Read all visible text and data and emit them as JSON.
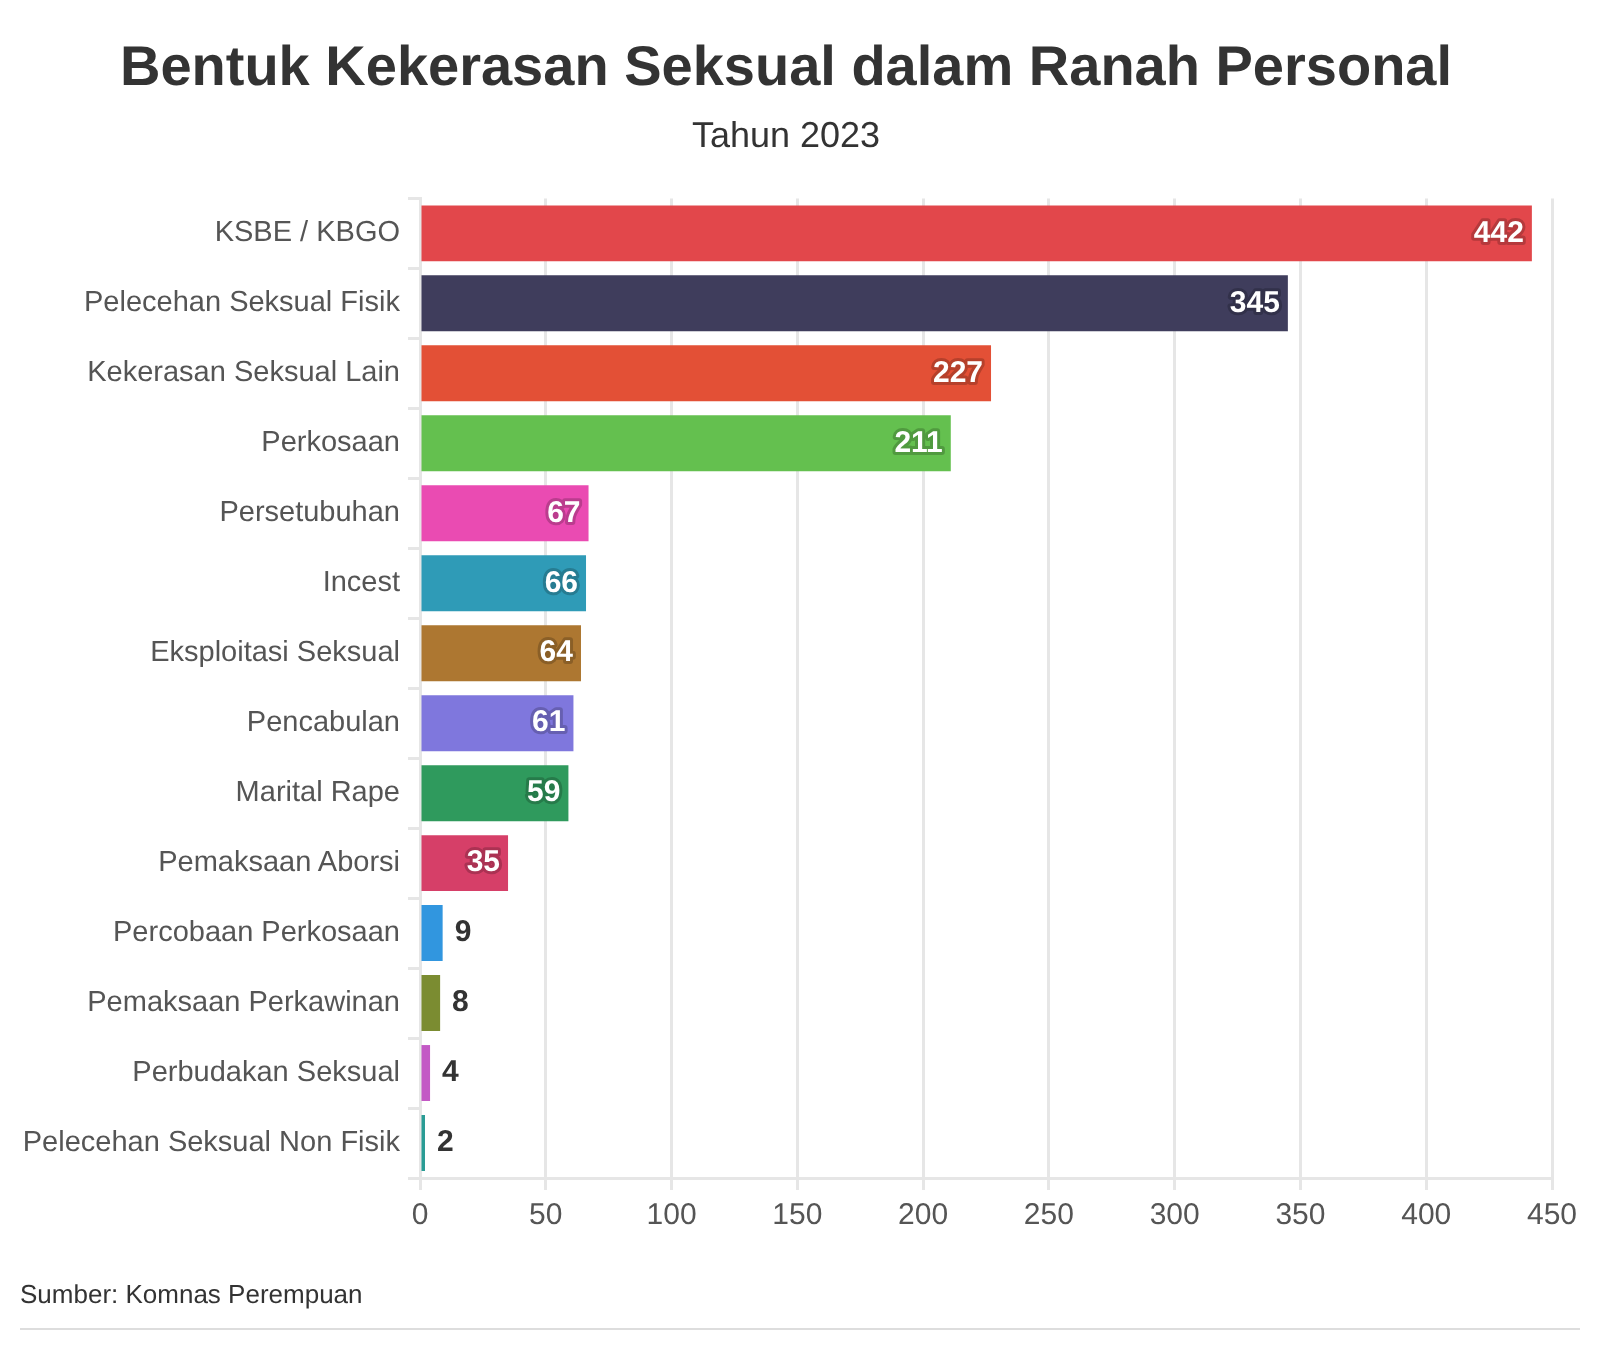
{
  "chart_data": {
    "type": "bar",
    "orientation": "horizontal",
    "title": "Bentuk Kekerasan Seksual dalam Ranah Personal",
    "subtitle": "Tahun 2023",
    "categories": [
      "KSBE / KBGO",
      "Pelecehan Seksual Fisik",
      "Kekerasan Seksual Lain",
      "Perkosaan",
      "Persetubuhan",
      "Incest",
      "Eksploitasi Seksual",
      "Pencabulan",
      "Marital Rape",
      "Pemaksaan Aborsi",
      "Percobaan Perkosaan",
      "Pemaksaan Perkawinan",
      "Perbudakan Seksual",
      "Pelecehan Seksual Non Fisik"
    ],
    "values": [
      442,
      345,
      227,
      211,
      67,
      66,
      64,
      61,
      59,
      35,
      9,
      8,
      4,
      2
    ],
    "colors": [
      "#e2474b",
      "#3f3d5c",
      "#e35036",
      "#64c04f",
      "#ea4bb2",
      "#2f9bb7",
      "#ad7731",
      "#7f77dd",
      "#2f9a5d",
      "#d63f68",
      "#3196df",
      "#7b8c31",
      "#c359c5",
      "#2a9c95"
    ],
    "xlim": [
      0,
      450
    ],
    "xticks": [
      0,
      50,
      100,
      150,
      200,
      250,
      300,
      350,
      400,
      450
    ],
    "grid": "x",
    "data_labels": true,
    "annotations": [
      "Sumber: Komnas Perempuan"
    ]
  }
}
